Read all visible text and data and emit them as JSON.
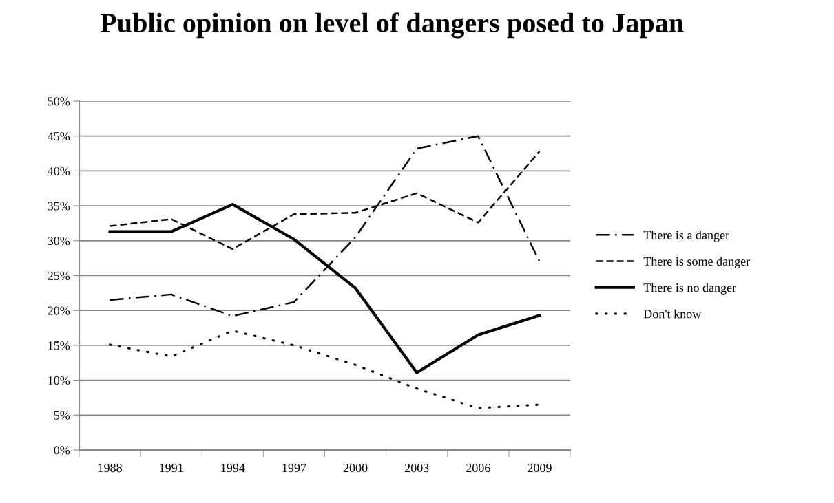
{
  "chart_data": {
    "type": "line",
    "title": "Public opinion on level of dangers posed to Japan",
    "categories": [
      "1988",
      "1991",
      "1994",
      "1997",
      "2000",
      "2003",
      "2006",
      "2009"
    ],
    "series": [
      {
        "name": "There is a danger",
        "color": "#000000",
        "line_style": "dashdot",
        "values": [
          21.5,
          22.3,
          19.2,
          21.2,
          30.5,
          43.2,
          45,
          27
        ]
      },
      {
        "name": "There is some danger",
        "color": "#000000",
        "line_style": "dashed",
        "values": [
          32.1,
          33.1,
          28.8,
          33.8,
          34,
          36.8,
          32.6,
          42.8
        ]
      },
      {
        "name": "There is no danger",
        "color": "#000000",
        "line_style": "solid",
        "values": [
          31.3,
          31.3,
          35.2,
          30.2,
          23.2,
          11.1,
          16.5,
          19.3
        ]
      },
      {
        "name": "Don't know",
        "color": "#000000",
        "line_style": "dotted",
        "values": [
          15.1,
          13.4,
          17.1,
          15,
          12.2,
          8.8,
          6,
          6.5
        ]
      }
    ],
    "ylim": [
      0,
      50
    ],
    "yticks": [
      {
        "value": 0,
        "label": "0%"
      },
      {
        "value": 5,
        "label": "5%"
      },
      {
        "value": 10,
        "label": "10%"
      },
      {
        "value": 15,
        "label": "15%"
      },
      {
        "value": 20,
        "label": "20%"
      },
      {
        "value": 25,
        "label": "25%"
      },
      {
        "value": 30,
        "label": "30%"
      },
      {
        "value": 35,
        "label": "35%"
      },
      {
        "value": 40,
        "label": "40%"
      },
      {
        "value": 45,
        "label": "45%"
      },
      {
        "value": 50,
        "label": "50%"
      }
    ],
    "grid": "y",
    "legend": "right",
    "marker": "none"
  }
}
